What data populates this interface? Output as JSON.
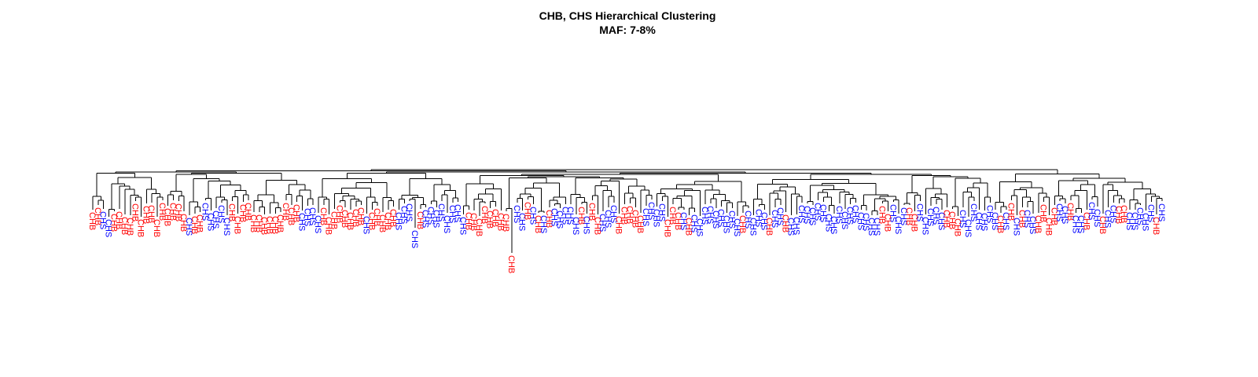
{
  "chart_data": {
    "type": "dendrogram",
    "title": "CHB, CHS Hierarchical Clustering",
    "subtitle": "MAF: 7-8%",
    "xlabel": "",
    "ylabel": "",
    "axes_visible": false,
    "legend": "none",
    "colors": {
      "CHB": "#ff0000",
      "CHS": "#0000ff",
      "branch": "#000000"
    },
    "leaves": [
      "CHB",
      "CHB",
      "CHS",
      "CHS",
      "CHB",
      "CHB",
      "CHB",
      "CHB",
      "CHB",
      "CHB",
      "CHB",
      "CHB",
      "CHB",
      "CHB",
      "CHB",
      "CHB",
      "CHB",
      "CHB",
      "CHS",
      "CHB",
      "CHB",
      "CHS",
      "CHS",
      "CHS",
      "CHS",
      "CHS",
      "CHB",
      "CHB",
      "CHB",
      "CHB",
      "CHB",
      "CHB",
      "CHB",
      "CHB",
      "CHB",
      "CHB",
      "CHB",
      "CHB",
      "CHB",
      "CHS",
      "CHS",
      "CHS",
      "CHS",
      "CHB",
      "CHB",
      "CHB",
      "CHB",
      "CHB",
      "CHB",
      "CHB",
      "CHB",
      "CHS",
      "CHB",
      "CHB",
      "CHB",
      "CHB",
      "CHB",
      "CHS",
      "CHS",
      "CHS",
      "CHS",
      "CHB",
      "CHS",
      "CHS",
      "CHS",
      "CHS",
      "CHS",
      "CHS",
      "CHS",
      "CHS",
      "CHB",
      "CHB",
      "CHB",
      "CHB",
      "CHB",
      "CHB",
      "CHB",
      "CHB",
      "CHB",
      "CHS",
      "CHS",
      "CHB",
      "CHS",
      "CHB",
      "CHS",
      "CHB",
      "CHS",
      "CHS",
      "CHS",
      "CHS",
      "CHS",
      "CHB",
      "CHS",
      "CHB",
      "CHB",
      "CHS",
      "CHS",
      "CHS",
      "CHB",
      "CHB",
      "CHB",
      "CHB",
      "CHB",
      "CHS",
      "CHS",
      "CHS",
      "CHS",
      "CHB",
      "CHB",
      "CHB",
      "CHS",
      "CHB",
      "CHS",
      "CHS",
      "CHS",
      "CHS",
      "CHS",
      "CHS",
      "CHS",
      "CHS",
      "CHS",
      "CHB",
      "CHS",
      "CHS",
      "CHS",
      "CHS",
      "CHB",
      "CHS",
      "CHS",
      "CHB",
      "CHS",
      "CHS",
      "CHS",
      "CHS",
      "CHS",
      "CHS",
      "CHS",
      "CHS",
      "CHS",
      "CHS",
      "CHS",
      "CHS",
      "CHS",
      "CHS",
      "CHS",
      "CHS",
      "CHS",
      "CHB",
      "CHB",
      "CHS",
      "CHS",
      "CHS",
      "CHB",
      "CHB",
      "CHS",
      "CHS",
      "CHS",
      "CHS",
      "CHS",
      "CHB",
      "CHB",
      "CHB",
      "CHS",
      "CHS",
      "CHS",
      "CHS",
      "CHS",
      "CHS",
      "CHS",
      "CHB",
      "CHS",
      "CHB",
      "CHS",
      "CHB",
      "CHS",
      "CHS",
      "CHB",
      "CHB",
      "CHB",
      "CHB",
      "CHS",
      "CHS",
      "CHB",
      "CHS",
      "CHS",
      "CHB",
      "CHS",
      "CHS",
      "CHB",
      "CHS",
      "CHS",
      "CHB",
      "CHB",
      "CHS",
      "CHS",
      "CHS",
      "CHS",
      "CHS",
      "CHB",
      "CHS"
    ]
  }
}
